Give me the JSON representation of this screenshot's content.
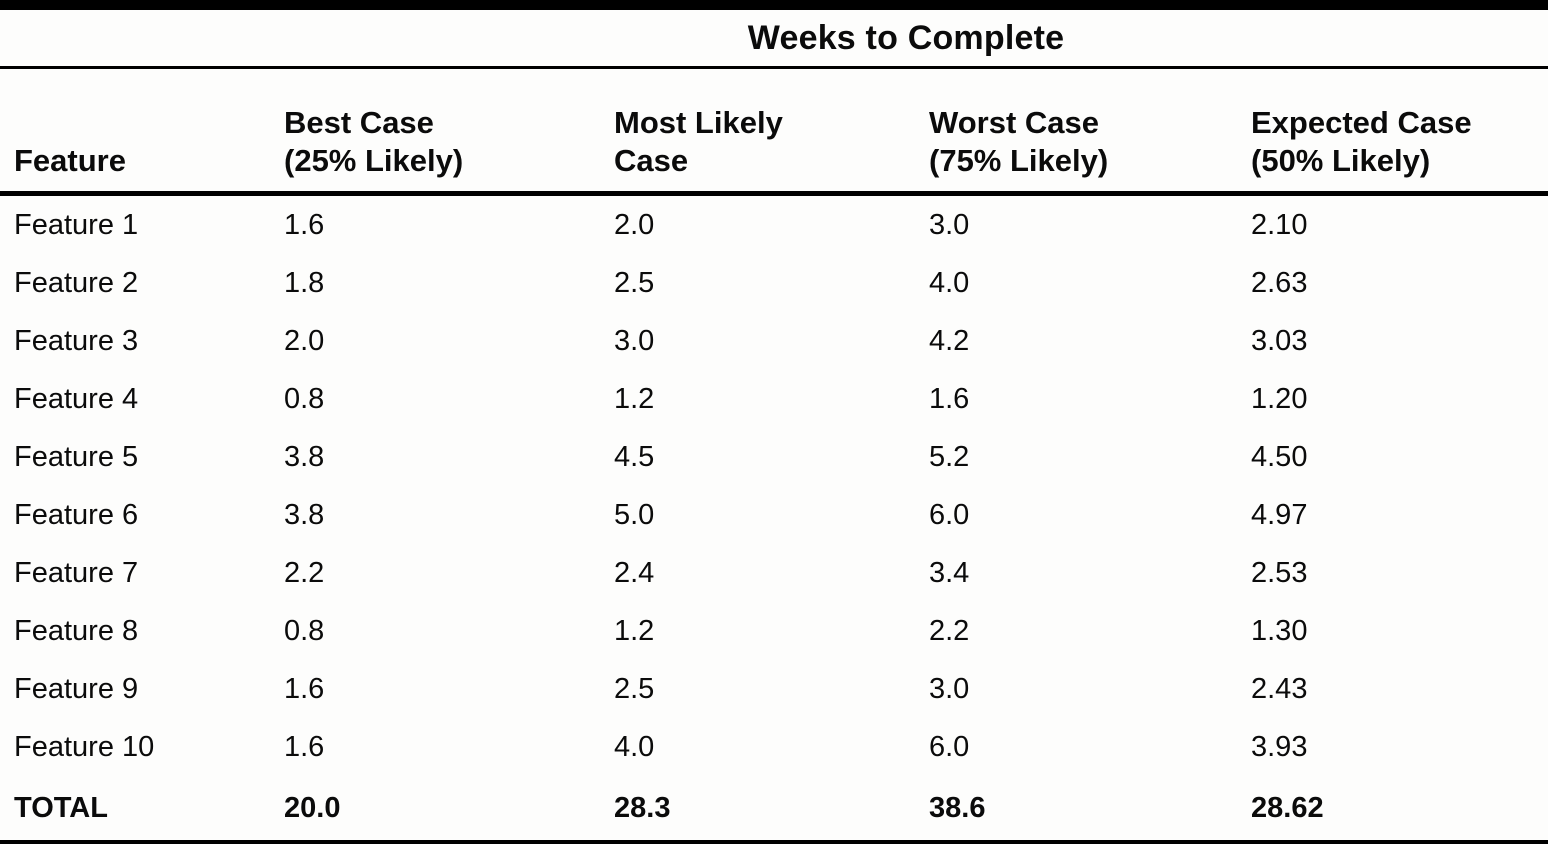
{
  "document": {
    "title": "Weeks to Complete",
    "columns": {
      "feature": "Feature",
      "best_line1": "Best Case",
      "best_line2": "(25% Likely)",
      "likely_line1": "Most Likely",
      "likely_line2": "Case",
      "worst_line1": "Worst Case",
      "worst_line2": "(75% Likely)",
      "expected_line1": "Expected Case",
      "expected_line2": "(50% Likely)"
    },
    "rows": [
      {
        "feature": "Feature 1",
        "best": "1.6",
        "likely": "2.0",
        "worst": "3.0",
        "expected": "2.10"
      },
      {
        "feature": "Feature 2",
        "best": "1.8",
        "likely": "2.5",
        "worst": "4.0",
        "expected": "2.63"
      },
      {
        "feature": "Feature 3",
        "best": "2.0",
        "likely": "3.0",
        "worst": "4.2",
        "expected": "3.03"
      },
      {
        "feature": "Feature 4",
        "best": "0.8",
        "likely": "1.2",
        "worst": "1.6",
        "expected": "1.20"
      },
      {
        "feature": "Feature 5",
        "best": "3.8",
        "likely": "4.5",
        "worst": "5.2",
        "expected": "4.50"
      },
      {
        "feature": "Feature 6",
        "best": "3.8",
        "likely": "5.0",
        "worst": "6.0",
        "expected": "4.97"
      },
      {
        "feature": "Feature 7",
        "best": "2.2",
        "likely": "2.4",
        "worst": "3.4",
        "expected": "2.53"
      },
      {
        "feature": "Feature 8",
        "best": "0.8",
        "likely": "1.2",
        "worst": "2.2",
        "expected": "1.30"
      },
      {
        "feature": "Feature 9",
        "best": "1.6",
        "likely": "2.5",
        "worst": "3.0",
        "expected": "2.43"
      },
      {
        "feature": "Feature 10",
        "best": "1.6",
        "likely": "4.0",
        "worst": "6.0",
        "expected": "3.93"
      }
    ],
    "total": {
      "feature": "TOTAL",
      "best": "20.0",
      "likely": "28.3",
      "worst": "38.6",
      "expected": "28.62"
    }
  }
}
